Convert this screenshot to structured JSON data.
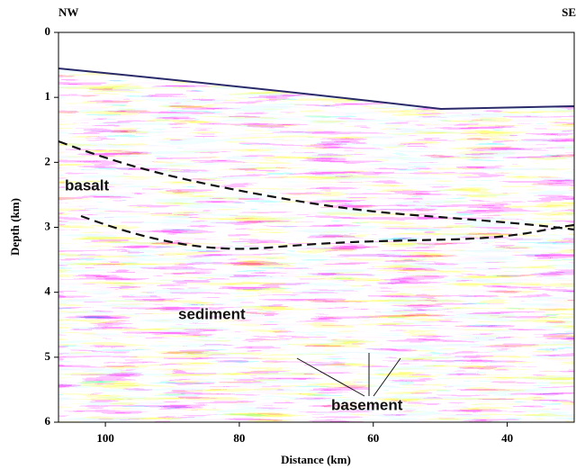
{
  "chart_data": {
    "type": "seismic-section",
    "left_label": "NW",
    "right_label": "SE",
    "xlabel": "Distance (km)",
    "ylabel": "Depth (km)",
    "xlim": [
      107,
      30
    ],
    "xticks": [
      100,
      80,
      60,
      40
    ],
    "ylim": [
      0,
      6
    ],
    "y_inverted": true,
    "yticks": [
      0,
      1,
      2,
      3,
      4,
      5,
      6
    ],
    "annotations": [
      "basalt",
      "sediment",
      "basement"
    ]
  }
}
